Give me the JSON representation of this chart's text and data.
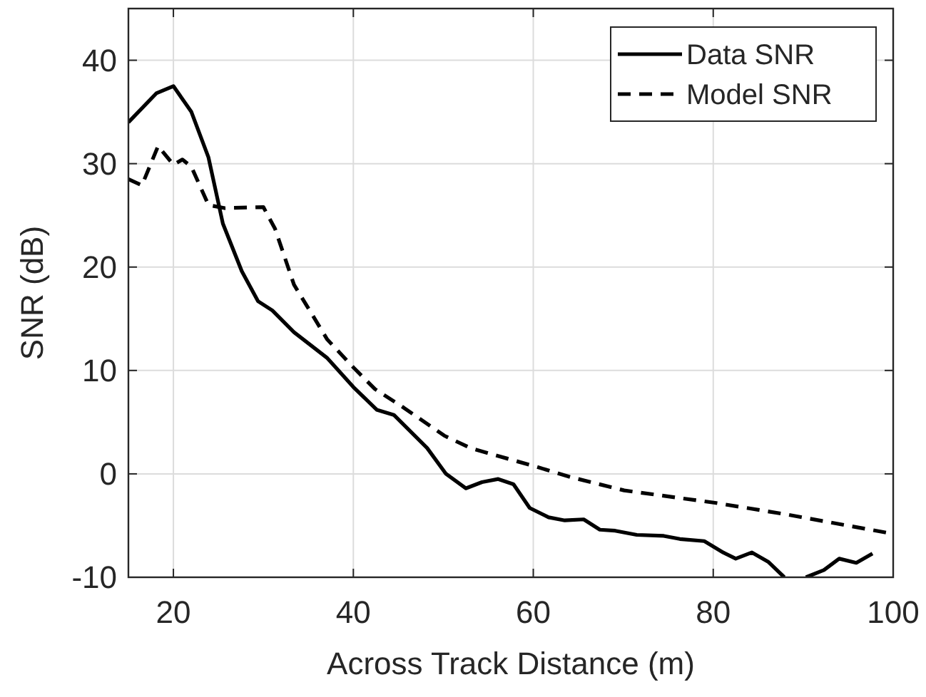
{
  "chart_data": {
    "type": "line",
    "xlabel": "Across Track Distance (m)",
    "ylabel": "SNR (dB)",
    "xlim": [
      15,
      100
    ],
    "ylim": [
      -10,
      45
    ],
    "xticks": [
      20,
      40,
      60,
      80,
      100
    ],
    "yticks": [
      -10,
      0,
      10,
      20,
      30,
      40
    ],
    "grid": true,
    "legend": "top right",
    "series": [
      {
        "name": "Data SNR",
        "color": "#000000",
        "line_style": "solid",
        "x": [
          15,
          18.1,
          20,
          22,
          23.9,
          25.5,
          27.6,
          29.4,
          31,
          33.4,
          37.1,
          40,
          42.6,
          44.5,
          48.2,
          50.3,
          52.5,
          54.3,
          56.1,
          57.8,
          59.6,
          61.7,
          63.5,
          65.6,
          67.4,
          69.1,
          71.5,
          74.5,
          76.3,
          79,
          81.1,
          82.5,
          84.3,
          86.1,
          87.9,
          89,
          90.3,
          92.3,
          94,
          95.9,
          97.7
        ],
        "values": [
          34,
          36.8,
          37.5,
          35,
          30.6,
          24.2,
          19.6,
          16.7,
          15.8,
          13.7,
          11.2,
          8.4,
          6.2,
          5.7,
          2.5,
          0,
          -1.4,
          -0.8,
          -0.5,
          -1,
          -3.3,
          -4.2,
          -4.5,
          -4.4,
          -5.4,
          -5.5,
          -5.9,
          -6,
          -6.3,
          -6.5,
          -7.6,
          -8.2,
          -7.6,
          -8.5,
          -10,
          null,
          -10,
          -9.3,
          -8.2,
          -8.6,
          -7.7
        ]
      },
      {
        "name": "Model SNR",
        "color": "#000000",
        "line_style": "dashed",
        "x": [
          15,
          16.5,
          18.3,
          20,
          21,
          22,
          23.9,
          25.7,
          30,
          31.3,
          33.4,
          37.1,
          40,
          42.4,
          45.6,
          50.1,
          53,
          55.8,
          60.3,
          64.1,
          70.1,
          80.2,
          88,
          100
        ],
        "values": [
          28.5,
          27.9,
          31.7,
          29.9,
          30.4,
          29.7,
          26,
          25.7,
          25.8,
          23.7,
          18.3,
          13,
          10.3,
          8.2,
          6.4,
          3.7,
          2.5,
          1.8,
          0.7,
          -0.3,
          -1.6,
          -2.8,
          -3.9,
          -5.8
        ]
      }
    ]
  }
}
